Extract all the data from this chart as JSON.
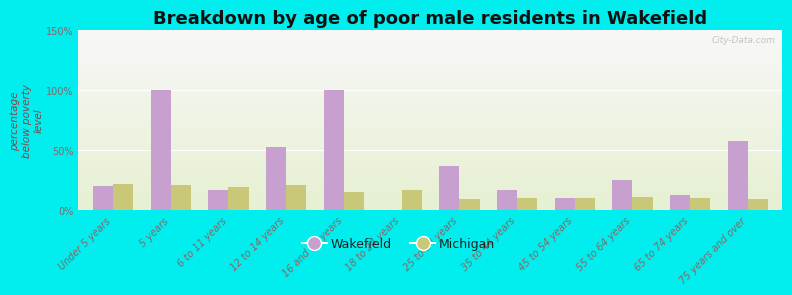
{
  "title": "Breakdown by age of poor male residents in Wakefield",
  "ylabel": "percentage\nbelow poverty\nlevel",
  "categories": [
    "Under 5 years",
    "5 years",
    "6 to 11 years",
    "12 to 14 years",
    "16 and 17 years",
    "18 to 24 years",
    "25 to 34 years",
    "35 to 44 years",
    "45 to 54 years",
    "55 to 64 years",
    "65 to 74 years",
    "75 years and over"
  ],
  "wakefield": [
    20,
    100,
    17,
    53,
    100,
    0,
    37,
    17,
    10,
    25,
    13,
    58
  ],
  "michigan": [
    22,
    21,
    19,
    21,
    15,
    17,
    9,
    10,
    10,
    11,
    10,
    9
  ],
  "wakefield_color": "#c8a0d0",
  "michigan_color": "#c8c878",
  "ylim": [
    0,
    150
  ],
  "yticks": [
    0,
    50,
    100,
    150
  ],
  "ytick_labels": [
    "0%",
    "50%",
    "100%",
    "150%"
  ],
  "bg_color": "#00eeee",
  "bar_width": 0.35,
  "title_fontsize": 13,
  "axis_label_fontsize": 7.5,
  "tick_fontsize": 7,
  "legend_fontsize": 9,
  "watermark": "City-Data.com",
  "tick_color": "#886666",
  "label_color": "#884444"
}
